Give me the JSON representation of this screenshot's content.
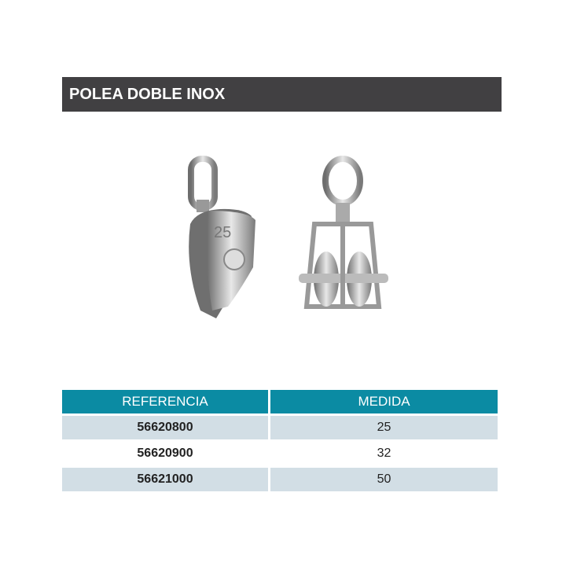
{
  "title": "POLEA DOBLE INOX",
  "image_engraving": "25",
  "table": {
    "headers": [
      "REFERENCIA",
      "MEDIDA"
    ],
    "rows": [
      {
        "referencia": "56620800",
        "medida": "25"
      },
      {
        "referencia": "56620900",
        "medida": "32"
      },
      {
        "referencia": "56621000",
        "medida": "50"
      }
    ]
  },
  "colors": {
    "title_bg": "#414042",
    "header_bg": "#0b8ba3",
    "row_alt_bg": "#d2dee5"
  }
}
